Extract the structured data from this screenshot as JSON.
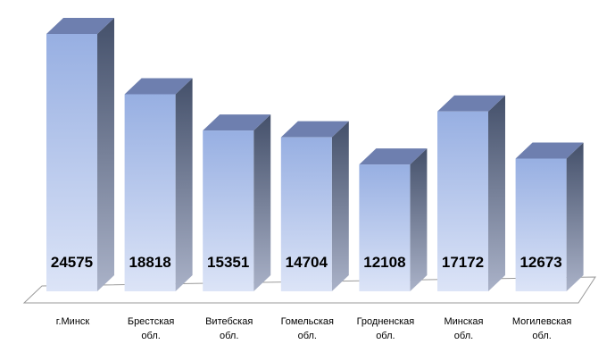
{
  "chart_data": {
    "type": "bar",
    "title": "",
    "xlabel": "",
    "ylabel": "",
    "categories": [
      [
        "г.Минск"
      ],
      [
        "Брестская",
        "обл."
      ],
      [
        "Витебская",
        "обл."
      ],
      [
        "Гомельская",
        "обл."
      ],
      [
        "Гродненская",
        "обл."
      ],
      [
        "Минская",
        "обл."
      ],
      [
        "Могилевская",
        "обл."
      ]
    ],
    "values": [
      24575,
      18818,
      15351,
      14704,
      12108,
      17172,
      12673
    ],
    "value_labels": [
      "24575",
      "18818",
      "15351",
      "14704",
      "12108",
      "17172",
      "12673"
    ],
    "ylim": [
      0,
      26000
    ],
    "grid": false,
    "legend": "none",
    "colors": {
      "front_top": "#97afe2",
      "front_bottom": "#dce4f7",
      "side_top": "#44506a",
      "side_bottom": "#aab2c8",
      "top_face": "#6e7faf",
      "floor_line": "#9a9a9a"
    }
  }
}
